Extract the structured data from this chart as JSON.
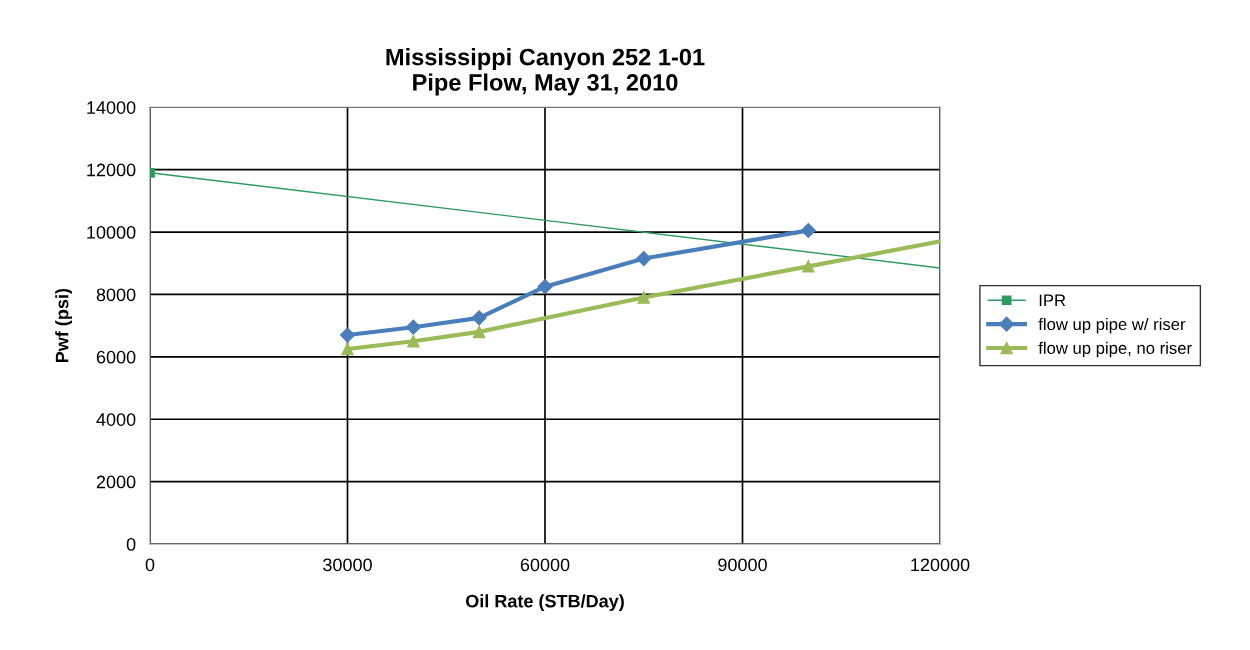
{
  "chart_data": {
    "type": "line",
    "title": "Mississippi Canyon 252 1-01\nPipe Flow, May 31, 2010",
    "xlabel": "Oil Rate (STB/Day)",
    "ylabel": "Pwf (psi)",
    "xlim": [
      0,
      120000
    ],
    "xticks": [
      0,
      30000,
      60000,
      90000,
      120000
    ],
    "ylim": [
      0,
      14000
    ],
    "yticks": [
      0,
      2000,
      4000,
      6000,
      8000,
      10000,
      12000,
      14000
    ],
    "grid": true,
    "legend": "right",
    "series": [
      {
        "name": "IPR",
        "color": "#2e9a62",
        "x": [
          0,
          120000
        ],
        "values": [
          11900,
          8850
        ],
        "marker": "square",
        "line_style": "solid"
      },
      {
        "name": "flow up pipe w/ riser",
        "color": "#4a7ebb",
        "x": [
          30000,
          40000,
          50000,
          60000,
          75000,
          100000
        ],
        "values": [
          6700,
          6950,
          7250,
          8250,
          9150,
          10050
        ],
        "marker": "diamond",
        "line_style": "solid"
      },
      {
        "name": "flow up pipe, no riser",
        "color": "#9bbb59",
        "x": [
          30000,
          40000,
          50000,
          75000,
          100000,
          120000
        ],
        "values": [
          6250,
          6500,
          6800,
          7900,
          8900,
          9700
        ],
        "marker": "triangle",
        "line_style": "solid"
      }
    ]
  }
}
